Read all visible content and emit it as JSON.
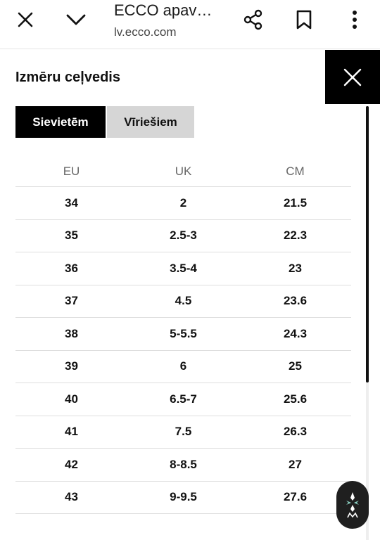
{
  "browser": {
    "title": "ECCO apav…",
    "url": "lv.ecco.com",
    "icons": [
      "close-icon",
      "chevron-down-icon",
      "share-icon",
      "bookmark-icon",
      "more-vert-icon"
    ]
  },
  "size_guide": {
    "title": "Izmēru ceļvedis",
    "tabs": [
      {
        "label": "Sievietēm",
        "active": true
      },
      {
        "label": "Vīriešiem",
        "active": false
      }
    ],
    "headers": [
      "EU",
      "UK",
      "CM"
    ],
    "rows": [
      [
        "34",
        "2",
        "21.5"
      ],
      [
        "35",
        "2.5-3",
        "22.3"
      ],
      [
        "36",
        "3.5-4",
        "23"
      ],
      [
        "37",
        "4.5",
        "23.6"
      ],
      [
        "38",
        "5-5.5",
        "24.3"
      ],
      [
        "39",
        "6",
        "25"
      ],
      [
        "40",
        "6.5-7",
        "25.6"
      ],
      [
        "41",
        "7.5",
        "26.3"
      ],
      [
        "42",
        "8-8.5",
        "27"
      ],
      [
        "43",
        "9-9.5",
        "27.6"
      ]
    ]
  },
  "colors": {
    "active_tab": "#000000",
    "inactive_tab": "#d6d6d6",
    "close_panel": "#000000"
  }
}
